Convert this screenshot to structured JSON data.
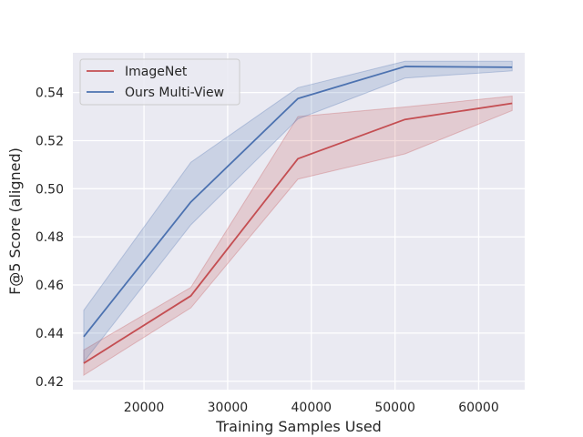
{
  "chart_data": {
    "type": "line",
    "title": "",
    "xlabel": "Training Samples Used",
    "ylabel": "F@5 Score (aligned)",
    "xlim": [
      11500,
      65500
    ],
    "ylim": [
      0.4165,
      0.5565
    ],
    "x_ticks": [
      20000,
      30000,
      40000,
      50000,
      60000
    ],
    "x_tick_labels": [
      "20000",
      "30000",
      "40000",
      "50000",
      "60000"
    ],
    "y_ticks": [
      0.42,
      0.44,
      0.46,
      0.48,
      0.5,
      0.52,
      0.54
    ],
    "y_tick_labels": [
      "0.42",
      "0.44",
      "0.46",
      "0.48",
      "0.50",
      "0.52",
      "0.54"
    ],
    "grid": true,
    "legend_position": "top-left",
    "x": [
      12800,
      25600,
      38400,
      51200,
      64000
    ],
    "series": [
      {
        "name": "ImageNet",
        "color": "#c44e52",
        "values": [
          0.4275,
          0.4555,
          0.5125,
          0.5288,
          0.5355
        ],
        "lower": [
          0.4225,
          0.4505,
          0.504,
          0.5145,
          0.5325
        ],
        "upper": [
          0.433,
          0.459,
          0.53,
          0.534,
          0.5385
        ]
      },
      {
        "name": "Ours Multi-View",
        "color": "#4c72b0",
        "values": [
          0.4385,
          0.4945,
          0.5375,
          0.5508,
          0.5505
        ],
        "lower": [
          0.428,
          0.485,
          0.529,
          0.546,
          0.549
        ],
        "upper": [
          0.4495,
          0.511,
          0.542,
          0.553,
          0.553
        ]
      }
    ]
  }
}
